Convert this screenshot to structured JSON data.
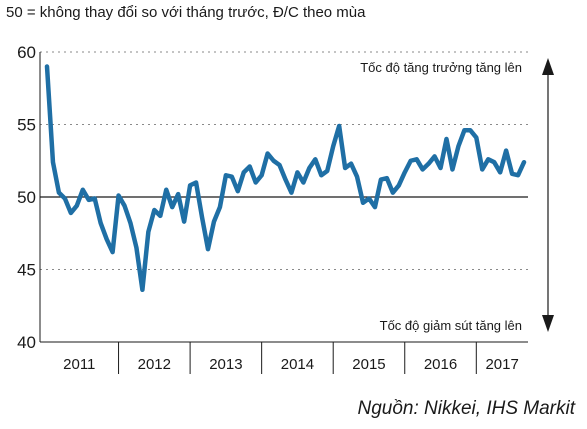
{
  "subtitle": "50 = không thay đổi so với tháng trước, Đ/C theo mùa",
  "source": "Nguồn: Nikkei, IHS Markit",
  "chart_data": {
    "type": "line",
    "ylim": [
      40,
      60
    ],
    "yticks": [
      40,
      45,
      50,
      55,
      60
    ],
    "reference_line": 50,
    "grid": "dotted horizontal lines at 45, 55 and 60",
    "line_color": "#1f6fa5",
    "annotations": {
      "up": "Tốc độ tăng trưởng tăng lên",
      "down": "Tốc độ giảm sút tăng lên"
    },
    "years": [
      "2011",
      "2012",
      "2013",
      "2014",
      "2015",
      "2016",
      "2017"
    ],
    "x_start": "2011-01",
    "x_end": "2017-09",
    "series": [
      {
        "values": [
          59.0,
          52.4,
          50.3,
          49.9,
          48.9,
          49.4,
          50.5,
          49.8,
          49.9,
          48.2,
          47.1,
          46.2,
          50.1,
          49.4,
          48.2,
          46.5,
          43.6,
          47.6,
          49.1,
          48.7,
          50.5,
          49.3,
          50.2,
          48.3,
          50.8,
          51.0,
          48.6,
          46.4,
          48.3,
          49.3,
          51.5,
          51.4,
          50.4,
          51.7,
          52.1,
          51.0,
          51.5,
          53.0,
          52.5,
          52.2,
          51.2,
          50.3,
          51.7,
          51.0,
          52.0,
          52.6,
          51.5,
          51.8,
          53.5,
          54.9,
          52.0,
          52.3,
          51.4,
          49.6,
          49.9,
          49.3,
          51.2,
          51.3,
          50.3,
          50.8,
          51.7,
          52.5,
          52.6,
          51.9,
          52.3,
          52.8,
          52.0,
          54.0,
          51.9,
          53.5,
          54.6,
          54.6,
          54.1,
          51.9,
          52.6,
          52.4,
          51.7,
          53.2,
          51.6,
          51.5,
          52.4
        ]
      }
    ]
  }
}
